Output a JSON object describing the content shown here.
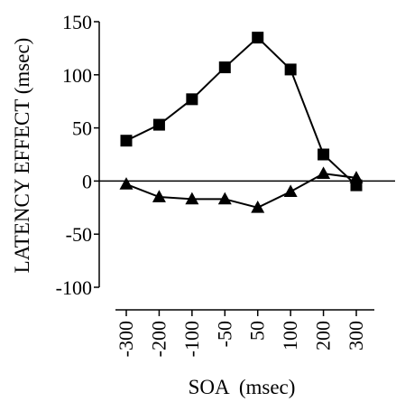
{
  "chart_data": {
    "type": "line",
    "title": "",
    "xlabel": "SOA  (msec)",
    "ylabel": "LATENCY EFFECT  (msec)",
    "categories": [
      "-300",
      "-200",
      "-100",
      "-50",
      "50",
      "100",
      "200",
      "300"
    ],
    "x": [
      -300,
      -200,
      -100,
      -50,
      50,
      100,
      200,
      300
    ],
    "ylim": [
      -100,
      150
    ],
    "yticks": [
      "150",
      "100",
      "50",
      "0",
      "-50",
      "-100"
    ],
    "ytick_values": [
      150,
      100,
      50,
      0,
      -50,
      -100
    ],
    "grid": false,
    "series": [
      {
        "marker": "square",
        "color": "#000000",
        "values": [
          38,
          53,
          77,
          107,
          135,
          105,
          25,
          -4
        ]
      },
      {
        "marker": "triangle",
        "color": "#000000",
        "values": [
          -3,
          -15,
          -17,
          -17,
          -25,
          -10,
          7,
          3
        ]
      }
    ]
  }
}
